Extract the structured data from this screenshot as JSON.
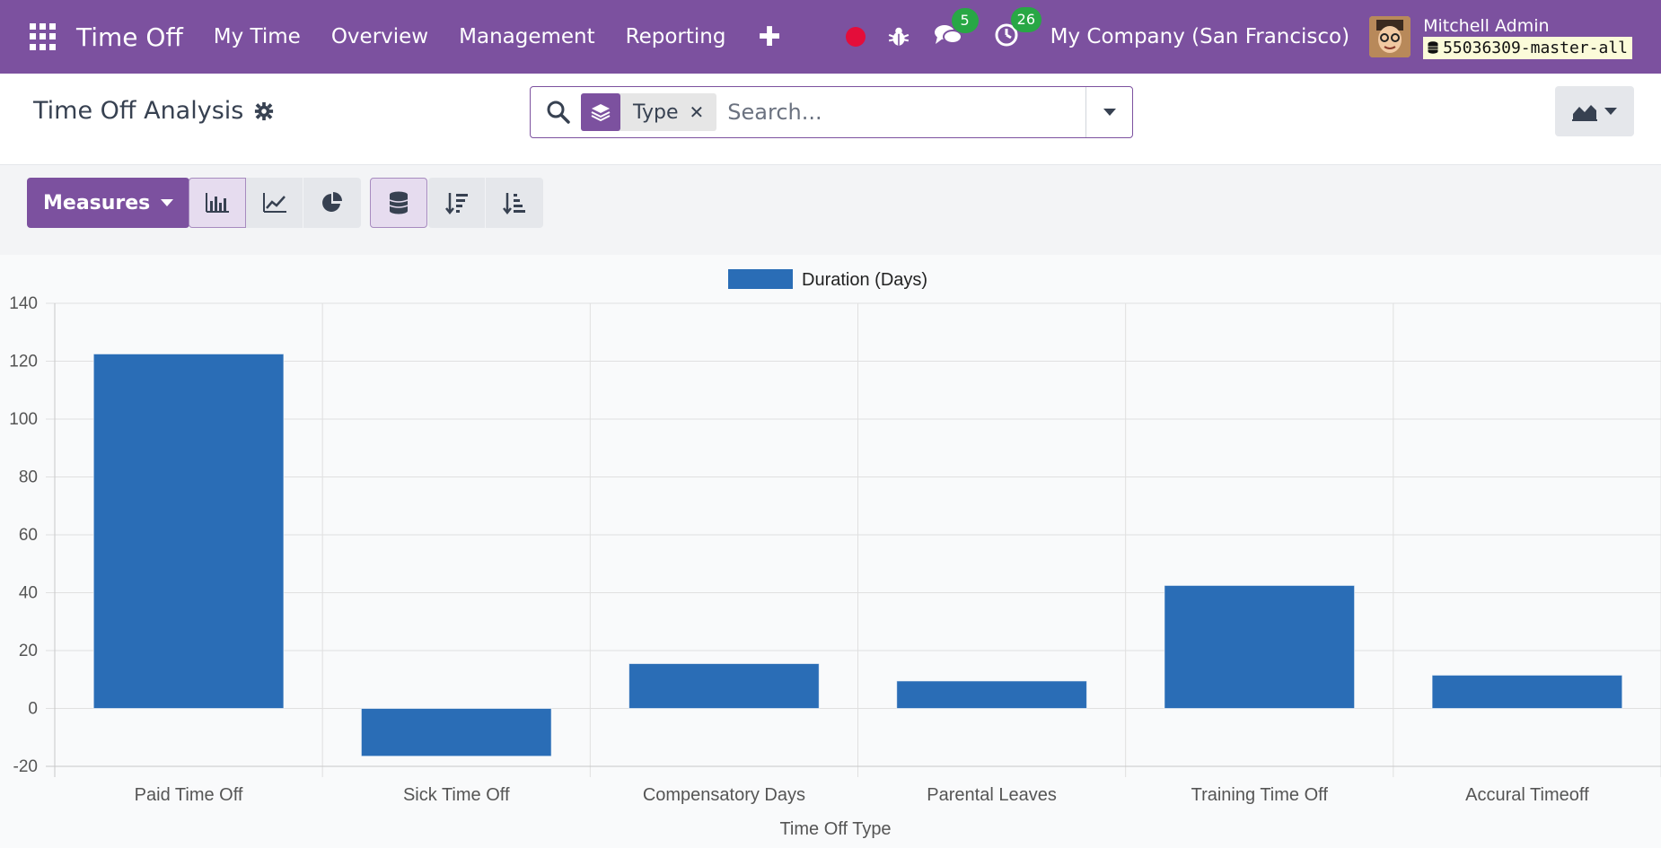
{
  "navbar": {
    "app_title": "Time Off",
    "menu": [
      "My Time",
      "Overview",
      "Management",
      "Reporting"
    ],
    "chat_badge": "5",
    "activity_badge": "26",
    "company": "My Company (San Francisco)",
    "user_name": "Mitchell Admin",
    "database": "55036309-master-all",
    "icons": [
      "apps-grid-icon",
      "plus-icon",
      "record-dot-icon",
      "bug-icon",
      "chat-icon",
      "clock-icon",
      "database-icon"
    ]
  },
  "control_panel": {
    "breadcrumb": "Time Off Analysis",
    "facet_label": "Type",
    "search_placeholder": "Search..."
  },
  "toolbar": {
    "measures_label": "Measures"
  },
  "colors": {
    "brand": "#7c519f",
    "bar": "#2a6db6",
    "badge": "#28a745"
  },
  "chart_data": {
    "type": "bar",
    "categories": [
      "Paid Time Off",
      "Sick Time Off",
      "Compensatory Days",
      "Parental Leaves",
      "Training Time Off",
      "Accural Timeoff"
    ],
    "series": [
      {
        "name": "Duration (Days)",
        "values": [
          122.5,
          -16.5,
          15.5,
          9.5,
          42.5,
          11.5
        ]
      }
    ],
    "xlabel": "Time Off Type",
    "ylabel": "",
    "ylim": [
      -20,
      140
    ],
    "yticks": [
      "-20",
      "0",
      "20",
      "40",
      "60",
      "80",
      "100",
      "120",
      "140"
    ],
    "grid": true,
    "legend": "top-center"
  }
}
